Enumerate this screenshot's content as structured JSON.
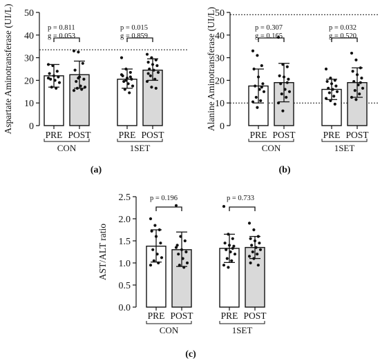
{
  "colors": {
    "bar_pre": "#ffffff",
    "bar_post": "#d9d9d9",
    "ink": "#111111"
  },
  "chart_data": [
    {
      "id": "a",
      "type": "bar",
      "panel_label": "(a)",
      "ylabel": "Aspartate Aminotransferase (UI/L)",
      "ylim": [
        0,
        50
      ],
      "yticks": [
        "0",
        "10",
        "20",
        "30",
        "40",
        "50"
      ],
      "yticks_values": [
        0,
        10,
        20,
        30,
        40,
        50
      ],
      "reference_line": 33.5,
      "categories": [
        "PRE",
        "POST",
        "PRE",
        "POST"
      ],
      "groups": [
        "CON",
        "1SET"
      ],
      "values": [
        22,
        22.5,
        20.5,
        24.5
      ],
      "sd_upper": [
        27,
        28.5,
        25,
        29.5
      ],
      "sd_lower": [
        17,
        16.5,
        16.5,
        20
      ],
      "points": [
        [
          27,
          26.5,
          24,
          23,
          22,
          21.5,
          20.5,
          20,
          19,
          17,
          16.5,
          21
        ],
        [
          33,
          32.5,
          27.5,
          24.5,
          21.5,
          20.5,
          19.5,
          17.5,
          17,
          16.5,
          16,
          15.5,
          21
        ],
        [
          30,
          25,
          23.5,
          22,
          21,
          20.5,
          19.5,
          18.5,
          17.5,
          16,
          14.5,
          22.5,
          20,
          21.5
        ],
        [
          31.5,
          30,
          29,
          28,
          27,
          26.5,
          25,
          24.5,
          23.5,
          22,
          20.5,
          19.5,
          17,
          16.5,
          23
        ]
      ],
      "annotations": [
        {
          "lines": [
            "p = 0.811",
            "g = 0.053"
          ]
        },
        {
          "lines": [
            "p = 0.015",
            "g = 0.859"
          ]
        }
      ]
    },
    {
      "id": "b",
      "type": "bar",
      "panel_label": "(b)",
      "ylabel": "Alanine Aminotransferase (UI/L)",
      "ylim": [
        0,
        50
      ],
      "yticks": [
        "0",
        "10",
        "20",
        "30",
        "40",
        "50"
      ],
      "yticks_values": [
        0,
        10,
        20,
        30,
        40,
        50
      ],
      "reference_lines": [
        49,
        10
      ],
      "categories": [
        "PRE",
        "POST",
        "PRE",
        "POST"
      ],
      "groups": [
        "CON",
        "1SET"
      ],
      "values": [
        17.5,
        19,
        16,
        19
      ],
      "sd_upper": [
        25,
        27.5,
        20.5,
        25.5
      ],
      "sd_lower": [
        10,
        10.5,
        11.5,
        12.5
      ],
      "points": [
        [
          33,
          31,
          26.5,
          25,
          21.5,
          18.5,
          17.5,
          16,
          15,
          12.5,
          11,
          10.5,
          8,
          17
        ],
        [
          39,
          27,
          26,
          22,
          21.5,
          20.5,
          18.5,
          16,
          15,
          14,
          12.5,
          10,
          6.5,
          19
        ],
        [
          25,
          21,
          20,
          19.5,
          18.5,
          17.5,
          16.5,
          16,
          15,
          14.5,
          13,
          12,
          11,
          9.5
        ],
        [
          32,
          29,
          25.5,
          24,
          22.5,
          21,
          19.5,
          18,
          16.5,
          15.5,
          14,
          12.5,
          11.5,
          19
        ]
      ],
      "annotations": [
        {
          "lines": [
            "p = 0.307",
            "g = 0.165"
          ]
        },
        {
          "lines": [
            "p = 0.032",
            "g = 0.520"
          ]
        }
      ]
    },
    {
      "id": "c",
      "type": "bar",
      "panel_label": "(c)",
      "ylabel": "AST/ALT ratio",
      "ylim": [
        0,
        2.5
      ],
      "yticks": [
        "0.0",
        "0.5",
        "1.0",
        "1.5",
        "2.0",
        "2.5"
      ],
      "yticks_values": [
        0,
        0.5,
        1,
        1.5,
        2,
        2.5
      ],
      "categories": [
        "PRE",
        "POST",
        "PRE",
        "POST"
      ],
      "groups": [
        "CON",
        "1SET"
      ],
      "values": [
        1.38,
        1.3,
        1.33,
        1.35
      ],
      "sd_upper": [
        1.75,
        1.7,
        1.65,
        1.6
      ],
      "sd_lower": [
        1.02,
        0.92,
        1.01,
        1.1
      ],
      "points": [
        [
          2.0,
          1.85,
          1.75,
          1.72,
          1.6,
          1.45,
          1.3,
          1.2,
          1.12,
          1.05,
          1.0,
          0.95
        ],
        [
          2.3,
          1.6,
          1.5,
          1.4,
          1.3,
          1.25,
          1.2,
          1.1,
          1.0,
          0.95,
          0.9,
          1.35
        ],
        [
          2.28,
          1.65,
          1.55,
          1.45,
          1.4,
          1.38,
          1.3,
          1.25,
          1.2,
          1.1,
          1.05,
          0.95,
          0.9,
          1.33
        ],
        [
          1.9,
          1.75,
          1.6,
          1.55,
          1.5,
          1.45,
          1.4,
          1.35,
          1.3,
          1.25,
          1.2,
          1.15,
          1.1,
          0.95,
          1.0
        ]
      ],
      "annotations": [
        {
          "lines": [
            "p = 0.196"
          ]
        },
        {
          "lines": [
            "p = 0.733"
          ]
        }
      ]
    }
  ]
}
